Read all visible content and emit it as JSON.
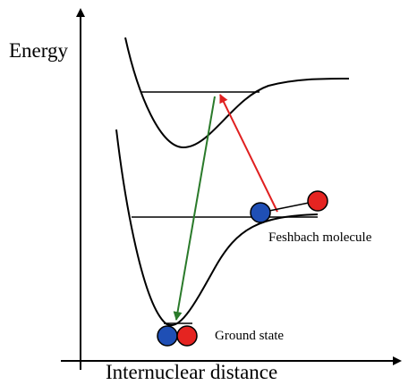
{
  "axes": {
    "y_label": "Energy",
    "x_label": "Internuclear distance"
  },
  "labels": {
    "feshbach": "Feshbach molecule",
    "ground": "Ground state"
  }
}
